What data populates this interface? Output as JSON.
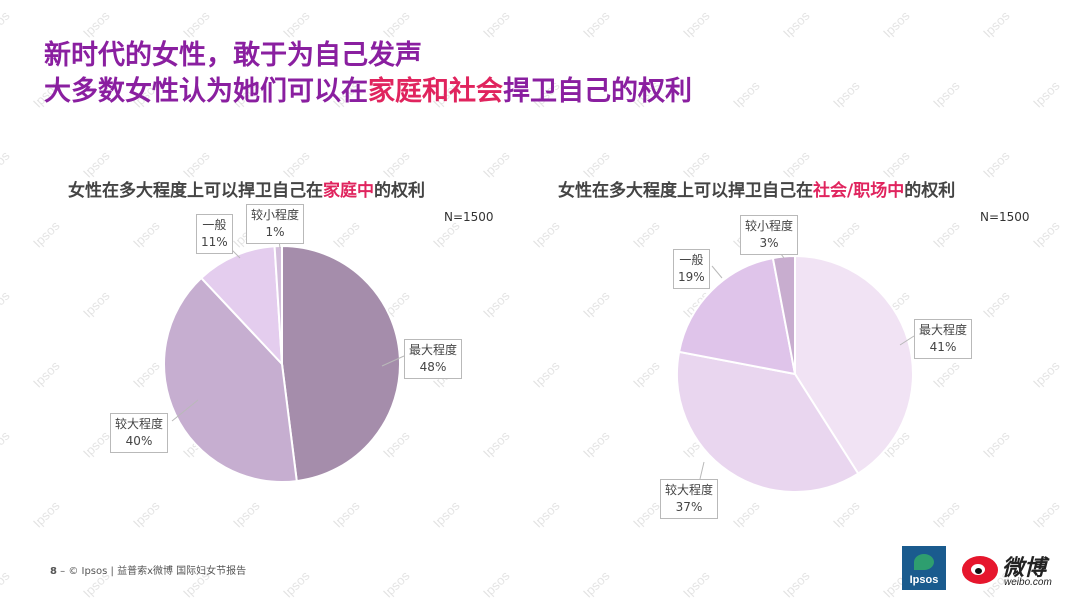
{
  "headline": {
    "line1": "新时代的女性，敢于为自己发声",
    "line2_pre": "大多数女性认为她们可以在",
    "line2_hl": "家庭和社会",
    "line2_post": "捍卫自己的权利"
  },
  "watermark_text": "Ipsos",
  "chart_data": [
    {
      "type": "pie",
      "title_pre": "女性在多大程度上可以捍卫自己在",
      "title_hl": "家庭中",
      "title_post": "的权利",
      "note": "N=1500",
      "slices": [
        {
          "label": "最大程度",
          "value": 48,
          "value_label": "48%",
          "color": "#a58dab"
        },
        {
          "label": "较大程度",
          "value": 40,
          "value_label": "40%",
          "color": "#c6aed0"
        },
        {
          "label": "一般",
          "value": 11,
          "value_label": "11%",
          "color": "#e4cdee"
        },
        {
          "label": "较小程度",
          "value": 1,
          "value_label": "1%",
          "color": "#d4bfdc"
        }
      ]
    },
    {
      "type": "pie",
      "title_pre": "女性在多大程度上可以捍卫自己在",
      "title_hl": "社会/职场中",
      "title_post": "的权利",
      "note": "N=1500",
      "slices": [
        {
          "label": "最大程度",
          "value": 41,
          "value_label": "41%",
          "color": "#f1e3f4"
        },
        {
          "label": "较大程度",
          "value": 37,
          "value_label": "37%",
          "color": "#e9d6ef"
        },
        {
          "label": "一般",
          "value": 19,
          "value_label": "19%",
          "color": "#dfc4ea"
        },
        {
          "label": "较小程度",
          "value": 3,
          "value_label": "3%",
          "color": "#c8adcf"
        }
      ]
    }
  ],
  "footer": {
    "page": "8",
    "text": "–  © Ipsos | 益普索x微博 国际妇女节报告"
  },
  "logos": {
    "ipsos": "Ipsos",
    "weibo_cn": "微博",
    "weibo_en": "weibo.com"
  }
}
